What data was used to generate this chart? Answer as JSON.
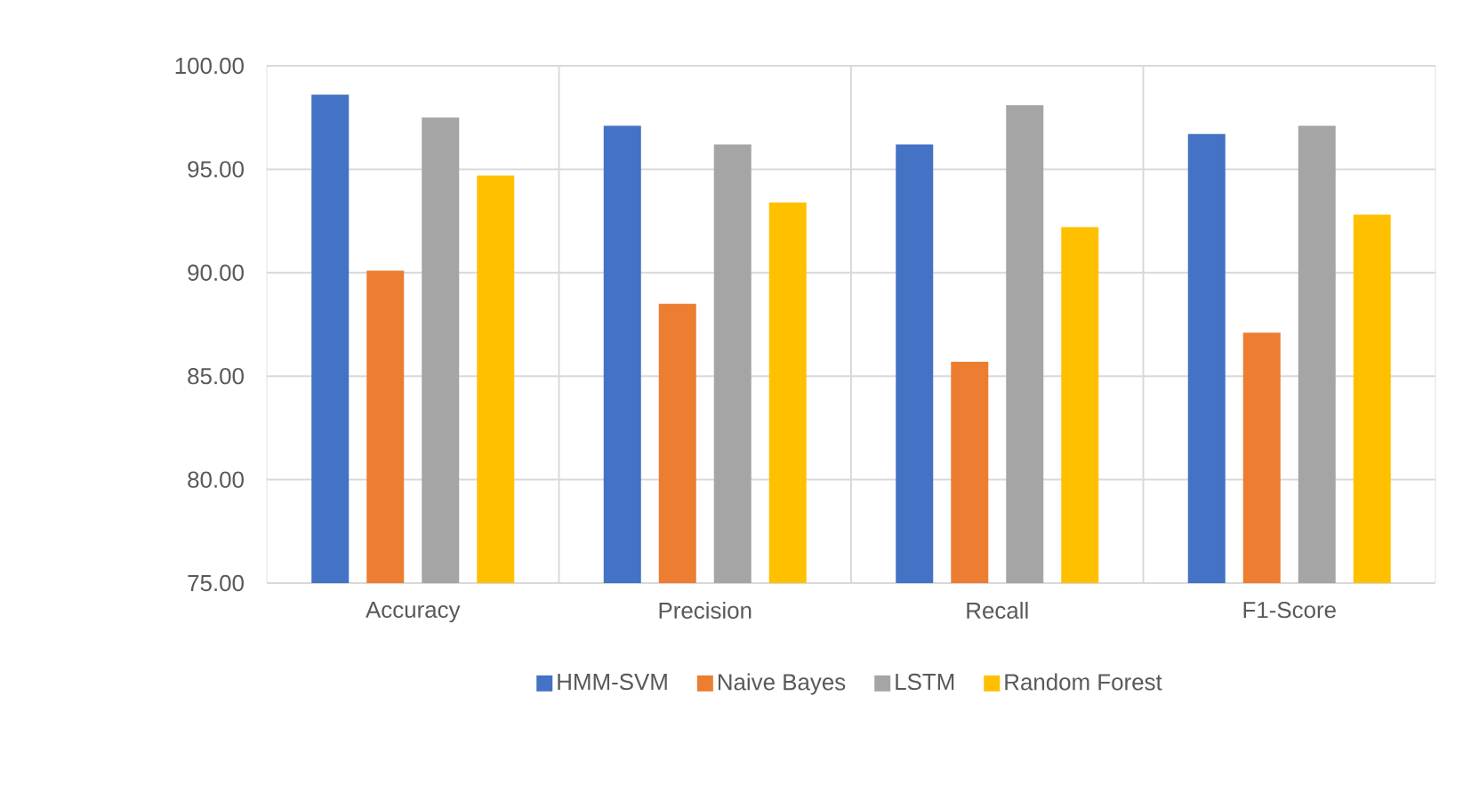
{
  "chart_data": {
    "type": "bar",
    "categories": [
      "Accuracy",
      "Precision",
      "Recall",
      "F1-Score"
    ],
    "series": [
      {
        "name": "HMM-SVM",
        "color": "#4472c4",
        "values": [
          98.6,
          97.1,
          96.2,
          96.7
        ]
      },
      {
        "name": "Naive Bayes",
        "color": "#ed7d31",
        "values": [
          90.1,
          88.5,
          85.7,
          87.1
        ]
      },
      {
        "name": "LSTM",
        "color": "#a5a5a5",
        "values": [
          97.5,
          96.2,
          98.1,
          97.1
        ]
      },
      {
        "name": "Random Forest",
        "color": "#ffc000",
        "values": [
          94.7,
          93.4,
          92.2,
          92.8
        ]
      }
    ],
    "ylim": [
      75,
      100
    ],
    "yticks": [
      {
        "value": 75,
        "label": "75.00"
      },
      {
        "value": 80,
        "label": "80.00"
      },
      {
        "value": 85,
        "label": "85.00"
      },
      {
        "value": 90,
        "label": "90.00"
      },
      {
        "value": 95,
        "label": "95.00"
      },
      {
        "value": 100,
        "label": "100.00"
      }
    ],
    "grid": true,
    "legend": "bottom"
  }
}
